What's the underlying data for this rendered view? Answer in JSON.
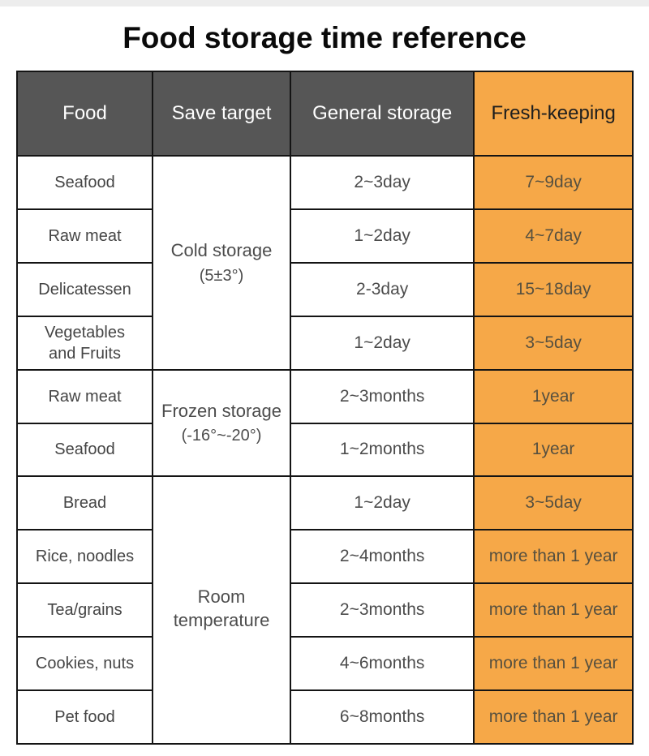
{
  "page": {
    "title": "Food storage time reference"
  },
  "colors": {
    "header_gray": "#565656",
    "accent_orange": "#f6a848",
    "grid_line_black": "#141414",
    "top_strip_gray": "#ededed",
    "fresh_text": "#57503f",
    "body_text": "#4c4c4c"
  },
  "table": {
    "headers": [
      "Food",
      "Save target",
      "General storage",
      "Fresh-keeping"
    ],
    "save_targets": [
      {
        "label": "Cold storage",
        "temp": "(5±3°)",
        "row_span": 4
      },
      {
        "label": "Frozen storage",
        "temp": "(-16°~-20°)",
        "row_span": 2
      },
      {
        "label": "Room\ntemperature",
        "temp": "",
        "row_span": 5
      }
    ],
    "rows": [
      {
        "food": "Seafood",
        "general": "2~3day",
        "fresh": "7~9day"
      },
      {
        "food": "Raw meat",
        "general": "1~2day",
        "fresh": "4~7day"
      },
      {
        "food": "Delicatessen",
        "general": "2-3day",
        "fresh": "15~18day"
      },
      {
        "food": "Vegetables\nand Fruits",
        "general": "1~2day",
        "fresh": "3~5day"
      },
      {
        "food": "Raw meat",
        "general": "2~3months",
        "fresh": "1year"
      },
      {
        "food": "Seafood",
        "general": "1~2months",
        "fresh": "1year"
      },
      {
        "food": "Bread",
        "general": "1~2day",
        "fresh": "3~5day"
      },
      {
        "food": "Rice, noodles",
        "general": "2~4months",
        "fresh": "more than 1 year"
      },
      {
        "food": "Tea/grains",
        "general": "2~3months",
        "fresh": "more than 1 year"
      },
      {
        "food": "Cookies, nuts",
        "general": "4~6months",
        "fresh": "more than 1 year"
      },
      {
        "food": "Pet food",
        "general": "6~8months",
        "fresh": "more than 1 year"
      }
    ]
  }
}
